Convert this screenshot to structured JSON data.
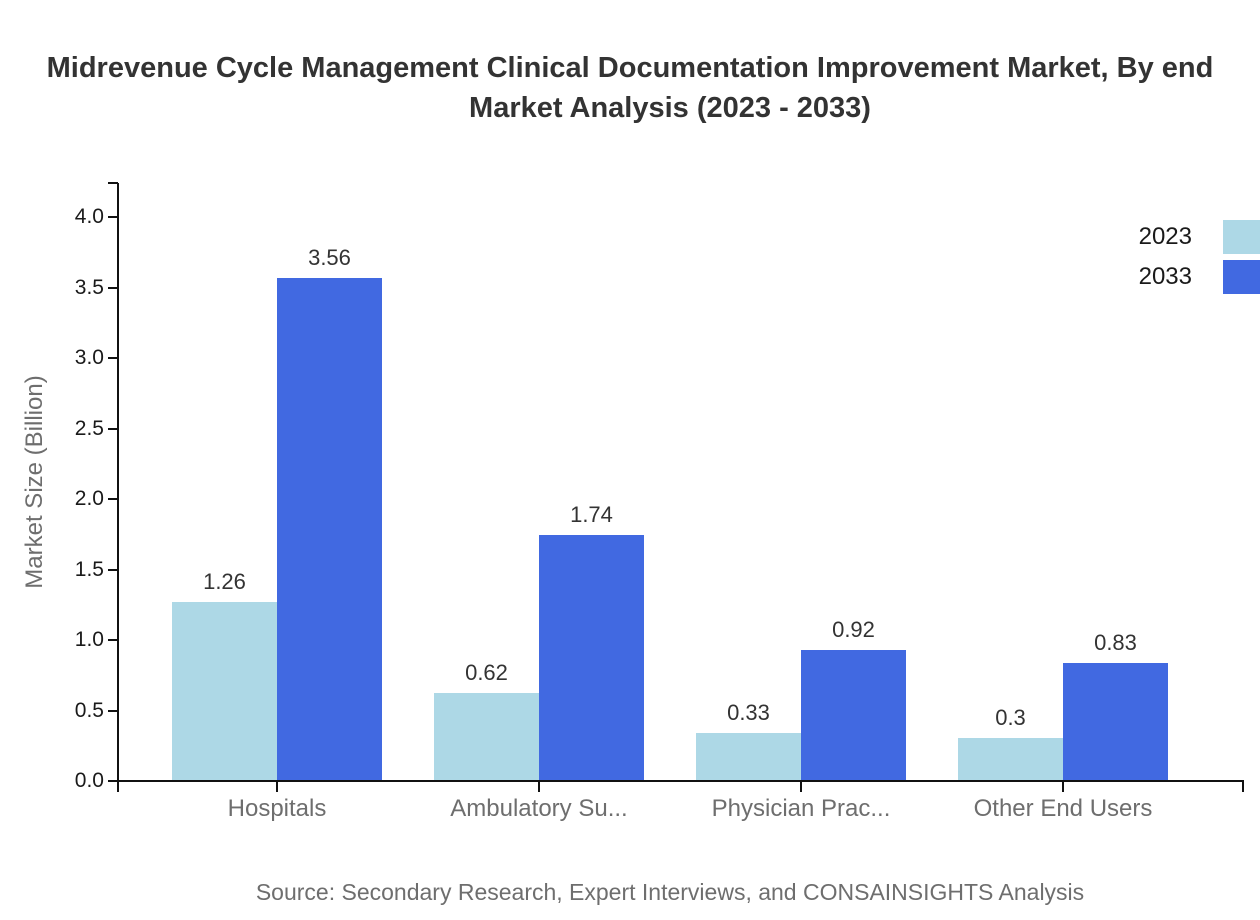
{
  "chart_data": {
    "type": "bar",
    "title_line1": "Midrevenue Cycle Management Clinical Documentation Improvement Market, By end",
    "title_line2": "Market Analysis (2023 - 2033)",
    "ylabel": "Market Size (Billion)",
    "xlabel": "",
    "categories": [
      "Hospitals",
      "Ambulatory Su...",
      "Physician Prac...",
      "Other End Users"
    ],
    "series": [
      {
        "name": "2023",
        "color": "#ADD8E6",
        "values": [
          1.26,
          0.62,
          0.33,
          0.3
        ]
      },
      {
        "name": "2033",
        "color": "#4169E1",
        "values": [
          3.56,
          1.74,
          0.92,
          0.83
        ]
      }
    ],
    "yticks": [
      0.0,
      0.5,
      1.0,
      1.5,
      2.0,
      2.5,
      3.0,
      3.5,
      4.0
    ],
    "ylim": [
      0,
      4.25
    ],
    "grid": false,
    "legend_position": "top-right",
    "source": "Source: Secondary Research, Expert Interviews, and CONSAINSIGHTS Analysis"
  },
  "colors": {
    "axis": "#111111",
    "title_text": "#333333",
    "tick_label": "#1a1a1a",
    "muted_label": "#6e6e6e",
    "value_label": "#333333",
    "background": "#ffffff"
  }
}
